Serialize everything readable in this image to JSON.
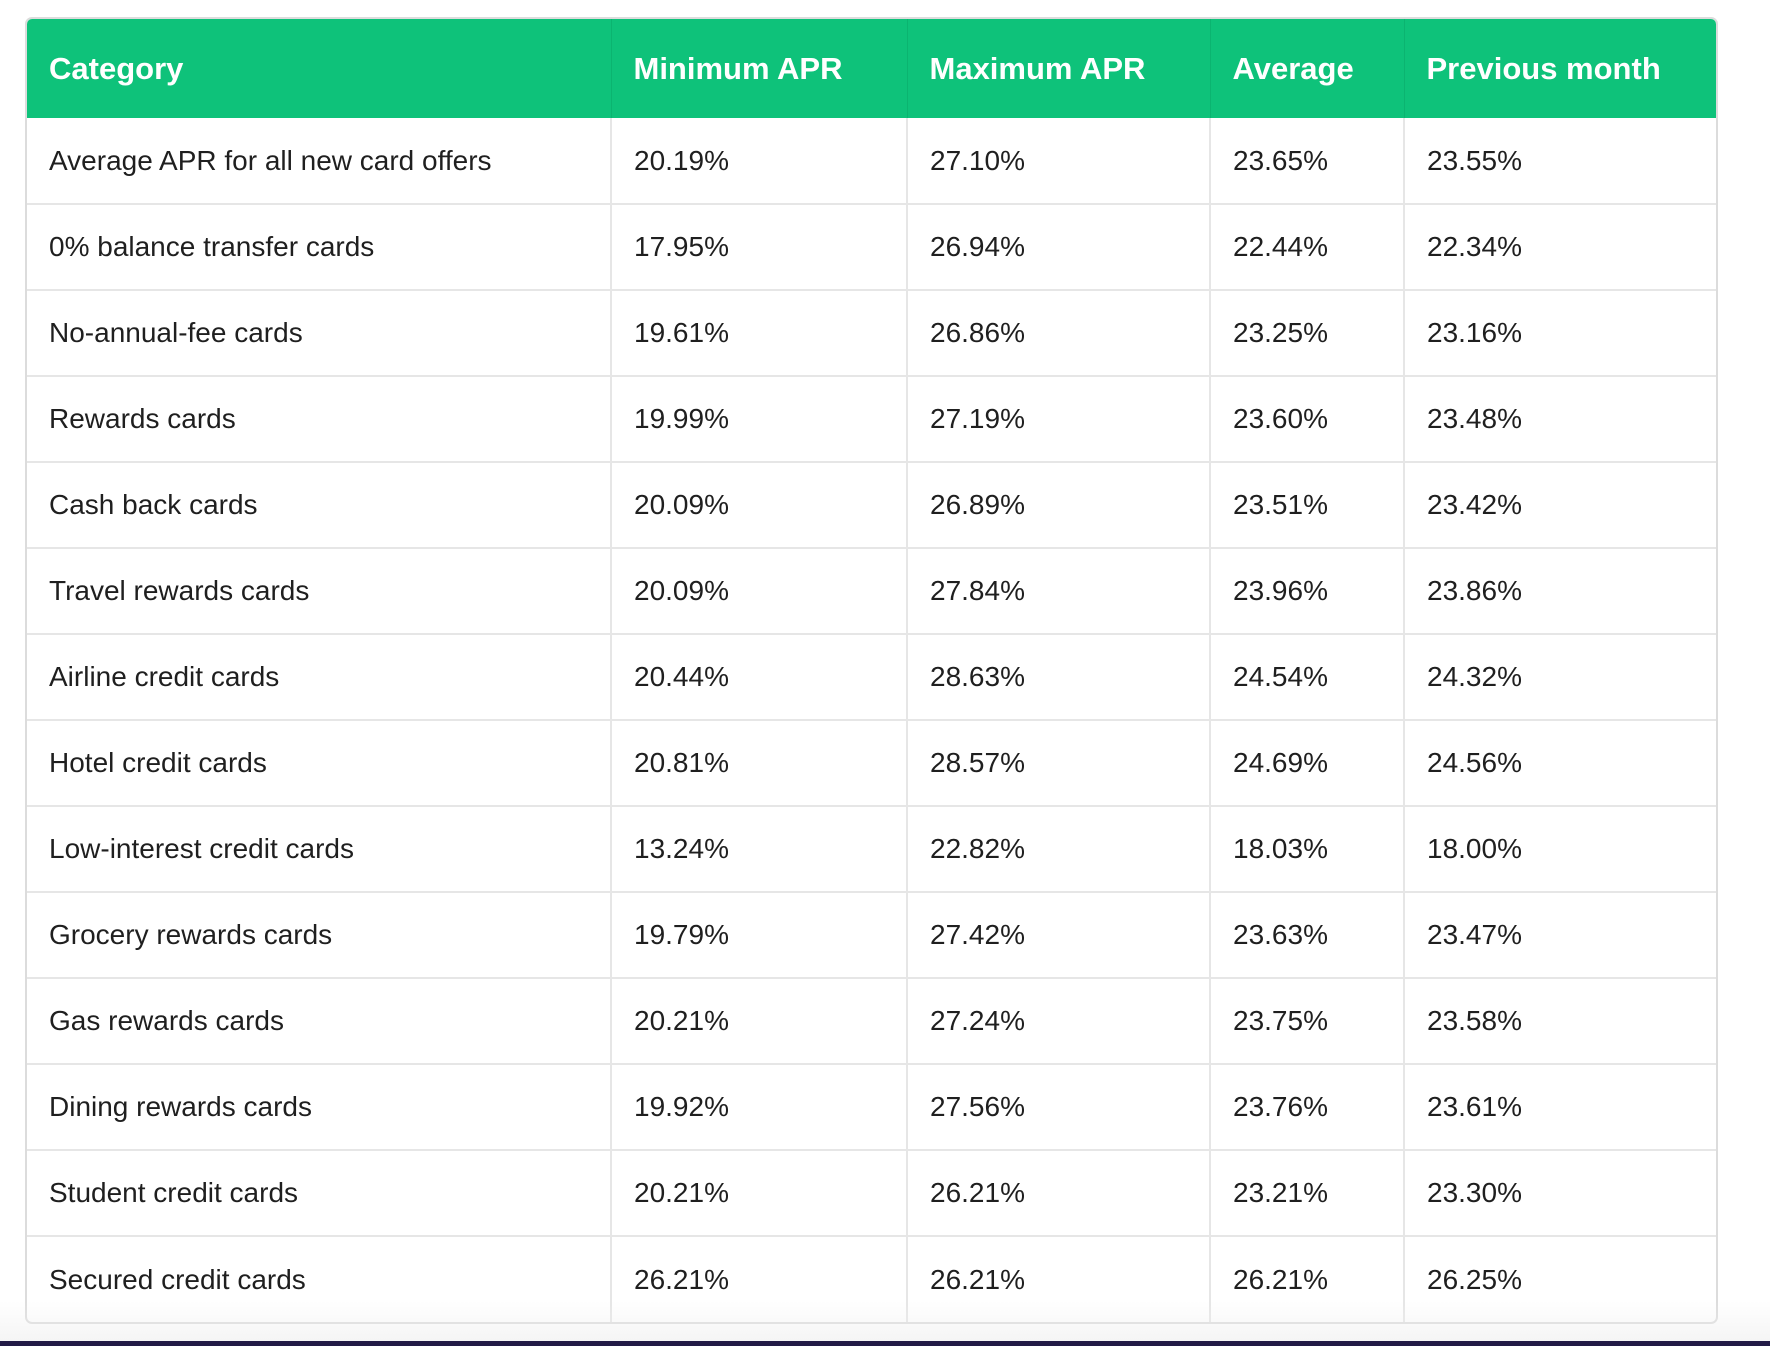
{
  "table": {
    "headers": [
      "Category",
      "Minimum APR",
      "Maximum APR",
      "Average",
      "Previous month"
    ],
    "rows": [
      [
        "Average APR for all new card offers",
        "20.19%",
        "27.10%",
        "23.65%",
        "23.55%"
      ],
      [
        "0% balance transfer cards",
        "17.95%",
        "26.94%",
        "22.44%",
        "22.34%"
      ],
      [
        "No-annual-fee cards",
        "19.61%",
        "26.86%",
        "23.25%",
        "23.16%"
      ],
      [
        "Rewards cards",
        "19.99%",
        "27.19%",
        "23.60%",
        "23.48%"
      ],
      [
        "Cash back cards",
        "20.09%",
        "26.89%",
        "23.51%",
        "23.42%"
      ],
      [
        "Travel rewards cards",
        "20.09%",
        "27.84%",
        "23.96%",
        "23.86%"
      ],
      [
        "Airline credit cards",
        "20.44%",
        "28.63%",
        "24.54%",
        "24.32%"
      ],
      [
        "Hotel credit cards",
        "20.81%",
        "28.57%",
        "24.69%",
        "24.56%"
      ],
      [
        "Low-interest credit cards",
        "13.24%",
        "22.82%",
        "18.03%",
        "18.00%"
      ],
      [
        "Grocery rewards cards",
        "19.79%",
        "27.42%",
        "23.63%",
        "23.47%"
      ],
      [
        "Gas rewards cards",
        "20.21%",
        "27.24%",
        "23.75%",
        "23.58%"
      ],
      [
        "Dining rewards cards",
        "19.92%",
        "27.56%",
        "23.76%",
        "23.61%"
      ],
      [
        "Student credit cards",
        "20.21%",
        "26.21%",
        "23.21%",
        "23.30%"
      ],
      [
        "Secured credit cards",
        "26.21%",
        "26.21%",
        "26.21%",
        "26.25%"
      ]
    ]
  },
  "colors": {
    "header_background": "#0ec27a",
    "header_text": "#ffffff",
    "cell_text": "#1f1f1f",
    "grid_lines": "#e6e6e6",
    "bottom_bar": "#221a46"
  }
}
